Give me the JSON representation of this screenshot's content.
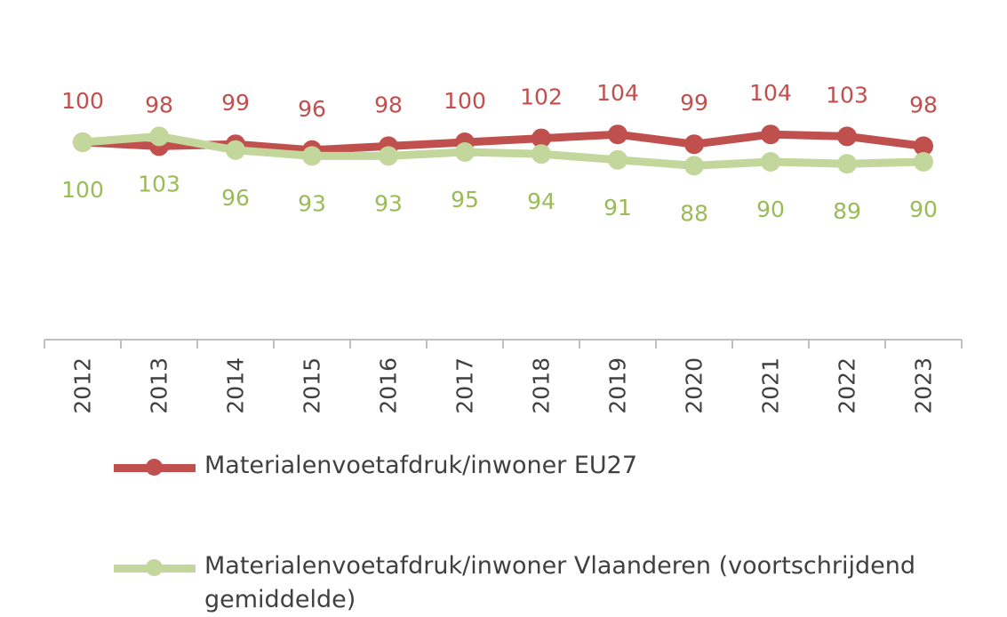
{
  "chart_data": {
    "type": "line",
    "categories": [
      "2012",
      "2013",
      "2014",
      "2015",
      "2016",
      "2017",
      "2018",
      "2019",
      "2020",
      "2021",
      "2022",
      "2023"
    ],
    "series": [
      {
        "name": "Materialenvoetafdruk/inwoner EU27",
        "color": "#c0504d",
        "values": [
          100,
          98,
          99,
          96,
          98,
          100,
          102,
          104,
          99,
          104,
          103,
          98
        ],
        "labels": [
          "100",
          "98",
          "99",
          "96",
          "98",
          "100",
          "102",
          "104",
          "99",
          "104",
          "103",
          "98"
        ],
        "label_position": "above"
      },
      {
        "name": "Materialenvoetafdruk/inwoner Vlaanderen (voortschrijdend gemiddelde)",
        "color": "#c3d69b",
        "label_color": "#9bbb59",
        "values": [
          100,
          103,
          96,
          93,
          93,
          95,
          94,
          91,
          88,
          90,
          89,
          90
        ],
        "labels": [
          "100",
          "103",
          "96",
          "93",
          "93",
          "95",
          "94",
          "91",
          "88",
          "90",
          "89",
          "90"
        ],
        "label_position": "below"
      }
    ],
    "ylim": [
      40,
      130
    ],
    "grid": false,
    "legend_position": "bottom"
  }
}
